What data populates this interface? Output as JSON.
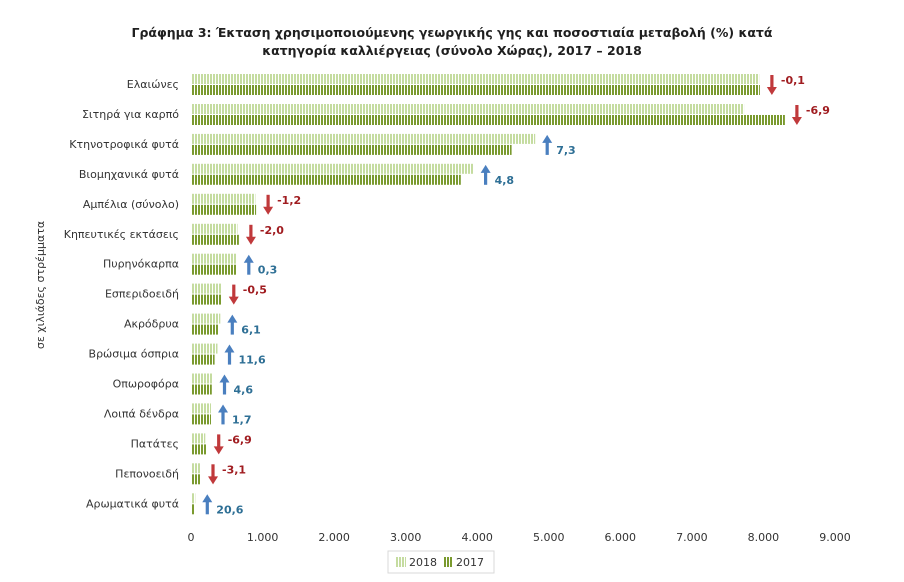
{
  "chart_data": {
    "type": "bar",
    "orientation": "horizontal",
    "title": "Γράφημα 3: Έκταση χρησιμοποιούμενης γεωργικής γης και ποσοστιαία μεταβολή (%) κατά κατηγορία καλλιέργειας (σύνολο Χώρας), 2017 – 2018",
    "title_lines": [
      "Γράφημα 3: Έκταση χρησιμοποιούμενης γεωργικής γης και ποσοστιαία μεταβολή (%) κατά",
      "κατηγορία καλλιέργειας (σύνολο Χώρας), 2017 – 2018"
    ],
    "ylabel": "σε χιλιάδες στρέμματα",
    "xlabel": "",
    "xlim": [
      0,
      9000
    ],
    "x_ticks": [
      0,
      1000,
      2000,
      3000,
      4000,
      5000,
      6000,
      7000,
      8000,
      9000
    ],
    "x_tick_labels": [
      "0",
      "1.000",
      "2.000",
      "3.000",
      "4.000",
      "5.000",
      "6.000",
      "7.000",
      "8.000",
      "9.000"
    ],
    "categories": [
      "Ελαιώνες",
      "Σιτηρά για καρπό",
      "Κτηνοτροφικά φυτά",
      "Βιομηχανικά φυτά",
      "Αμπέλια  (σύνολο)",
      "Κηπευτικές εκτάσεις",
      "Πυρηνόκαρπα",
      "Εσπεριδοειδή",
      "Ακρόδρυα",
      "Βρώσιμα όσπρια",
      "Οπωροφόρα",
      "Λοιπά δένδρα",
      "Πατάτες",
      "Πεπονοειδή",
      "Αρωματικά φυτά"
    ],
    "series": [
      {
        "name": "2018",
        "color": "#c5dca0",
        "values": [
          7940,
          7730,
          4810,
          3950,
          900,
          650,
          640,
          430,
          410,
          370,
          300,
          280,
          200,
          130,
          60
        ]
      },
      {
        "name": "2017",
        "color": "#7a9a2e",
        "values": [
          7950,
          8300,
          4480,
          3770,
          910,
          670,
          640,
          430,
          390,
          330,
          290,
          280,
          220,
          140,
          50
        ]
      }
    ],
    "changes": [
      "-0,1",
      "-6,9",
      "7,3",
      "4,8",
      "-1,2",
      "-2,0",
      "0,3",
      "-0,5",
      "6,1",
      "11,6",
      "4,6",
      "1,7",
      "-6,9",
      "-3,1",
      "20,6"
    ],
    "legend": {
      "placement": "bottom",
      "entries": [
        "2018",
        "2017"
      ]
    },
    "grid": false,
    "colors": {
      "up_arrow": "#4a7fbf",
      "down_arrow": "#c0393b",
      "up_text": "#2e6f95",
      "down_text": "#a01c20"
    }
  }
}
